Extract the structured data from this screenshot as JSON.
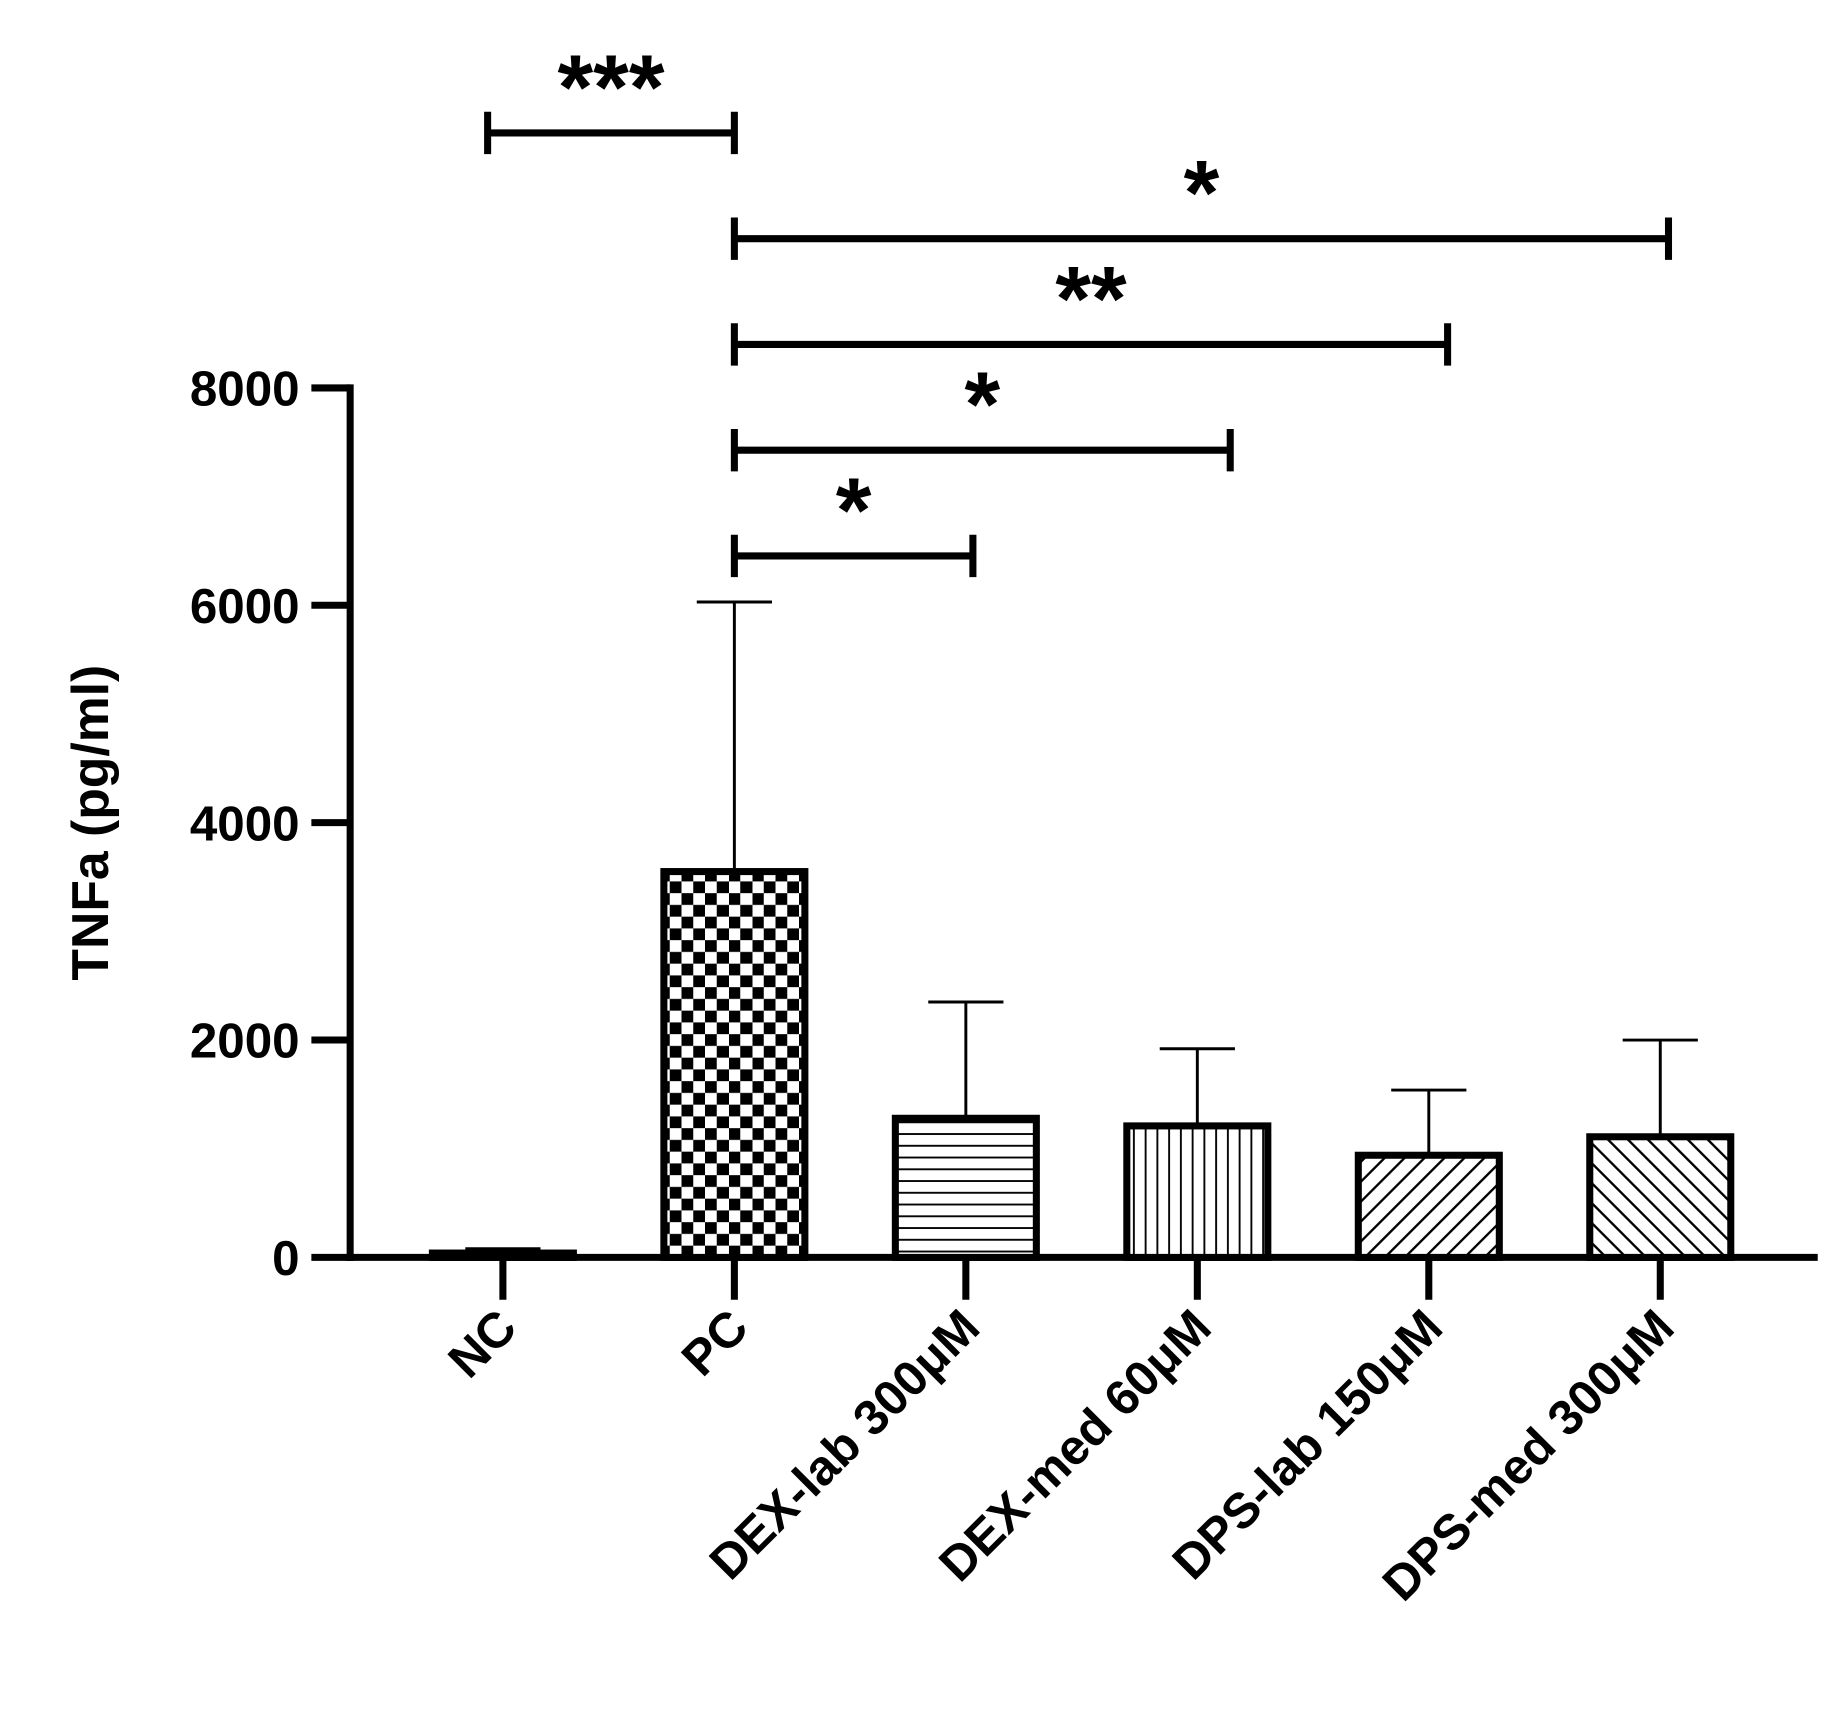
{
  "chart_data": {
    "type": "bar",
    "y_label": "TNFa (pg/ml)",
    "categories": [
      "NC",
      "PC",
      "DEX-lab 300μM",
      "DEX-med 60μM",
      "DPS-lab 150μM",
      "DPS-med 300μM"
    ],
    "values": [
      40,
      3550,
      1280,
      1210,
      940,
      1110
    ],
    "errors": [
      40,
      2480,
      1070,
      710,
      600,
      890
    ],
    "patterns": [
      "plain",
      "checker",
      "horizontal",
      "vertical",
      "diagonal-up",
      "diagonal-down"
    ],
    "color": "#000000",
    "ylim": [
      0,
      8000
    ],
    "yticks": [
      0,
      2000,
      4000,
      6000,
      8000
    ],
    "significance": [
      {
        "pair": [
          1,
          2
        ],
        "label": "*"
      },
      {
        "pair": [
          1,
          3
        ],
        "label": "*"
      },
      {
        "pair": [
          1,
          4
        ],
        "label": "**"
      },
      {
        "pair": [
          1,
          5
        ],
        "label": "*"
      },
      {
        "pair": [
          0,
          1
        ],
        "label": "***"
      }
    ]
  }
}
